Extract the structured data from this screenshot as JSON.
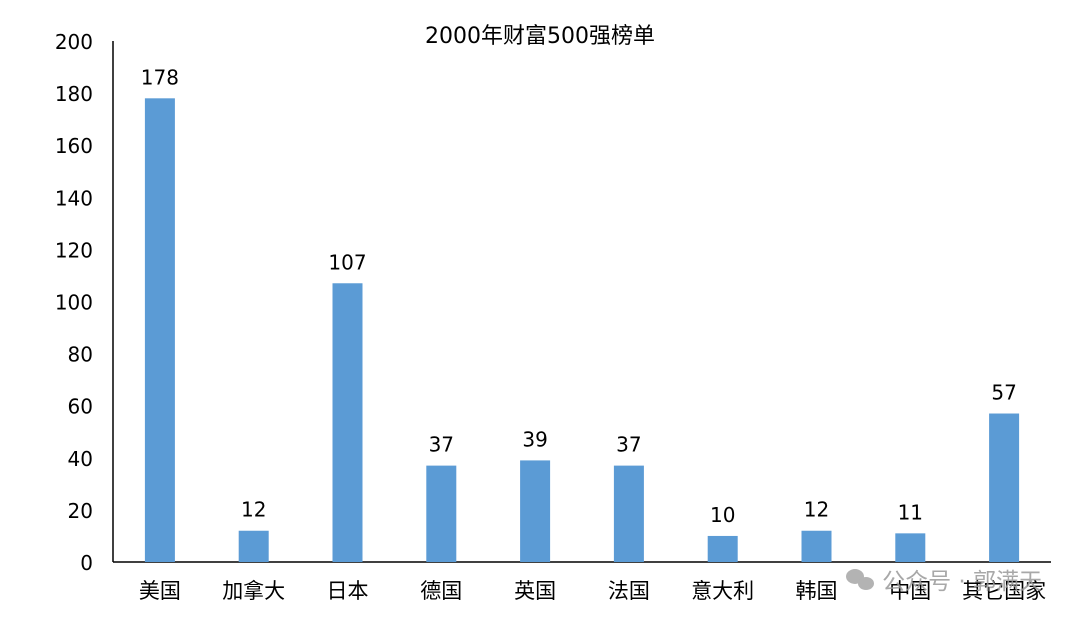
{
  "chart_data": {
    "type": "bar",
    "title": "2000年财富500强榜单",
    "categories": [
      "美国",
      "加拿大",
      "日本",
      "德国",
      "英国",
      "法国",
      "意大利",
      "韩国",
      "中国",
      "其它国家"
    ],
    "values": [
      178,
      12,
      107,
      37,
      39,
      37,
      10,
      12,
      11,
      57
    ],
    "ylim": [
      0,
      200
    ],
    "yticks": [
      "0",
      "20",
      "40",
      "60",
      "80",
      "100",
      "120",
      "140",
      "160",
      "180",
      "200"
    ],
    "xlabel": "",
    "ylabel": "",
    "grid": false,
    "legend": "none",
    "colors": {
      "bar": "#5B9BD5",
      "axis": "#000000"
    }
  },
  "watermark": {
    "text": "公众号 · 郭满天",
    "icon": "wechat-icon"
  }
}
